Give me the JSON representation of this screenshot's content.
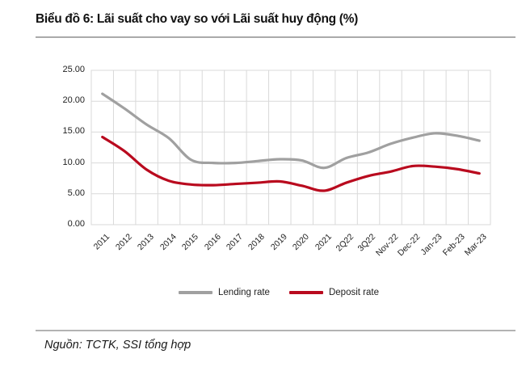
{
  "page": {
    "title": "Biểu đồ 6: Lãi suất cho vay so với Lãi suất huy động (%)",
    "source": "Nguồn: TCTK, SSI tổng hợp"
  },
  "chart_data": {
    "type": "line",
    "title": "Biểu đồ 6: Lãi suất cho vay so với Lãi suất huy động (%)",
    "categories": [
      "2011",
      "2012",
      "2013",
      "2014",
      "2015",
      "2016",
      "2017",
      "2018",
      "2019",
      "2020",
      "2021",
      "2Q22",
      "3Q22",
      "Nov-22",
      "Dec-22",
      "Jan-23",
      "Feb-23",
      "Mar-23"
    ],
    "series": [
      {
        "name": "Lending rate",
        "color": "#a0a0a0",
        "values": [
          21.2,
          18.8,
          16.2,
          14.0,
          10.5,
          10.0,
          10.0,
          10.3,
          10.6,
          10.4,
          9.2,
          10.8,
          11.7,
          13.1,
          14.1,
          14.8,
          14.4,
          13.6
        ]
      },
      {
        "name": "Deposit rate",
        "color": "#b90a1e",
        "values": [
          14.2,
          11.9,
          8.9,
          7.1,
          6.5,
          6.4,
          6.6,
          6.8,
          7.0,
          6.3,
          5.5,
          6.8,
          7.9,
          8.6,
          9.5,
          9.4,
          9.0,
          8.3
        ]
      }
    ],
    "xlabel": "",
    "ylabel": "",
    "ylim": [
      0,
      25
    ],
    "yticks": [
      0,
      5,
      10,
      15,
      20,
      25
    ],
    "ytick_labels": [
      "0.00",
      "5.00",
      "10.00",
      "15.00",
      "20.00",
      "25.00"
    ],
    "grid": true,
    "gridline_color": "#d9d9d9",
    "legend_position": "bottom"
  }
}
